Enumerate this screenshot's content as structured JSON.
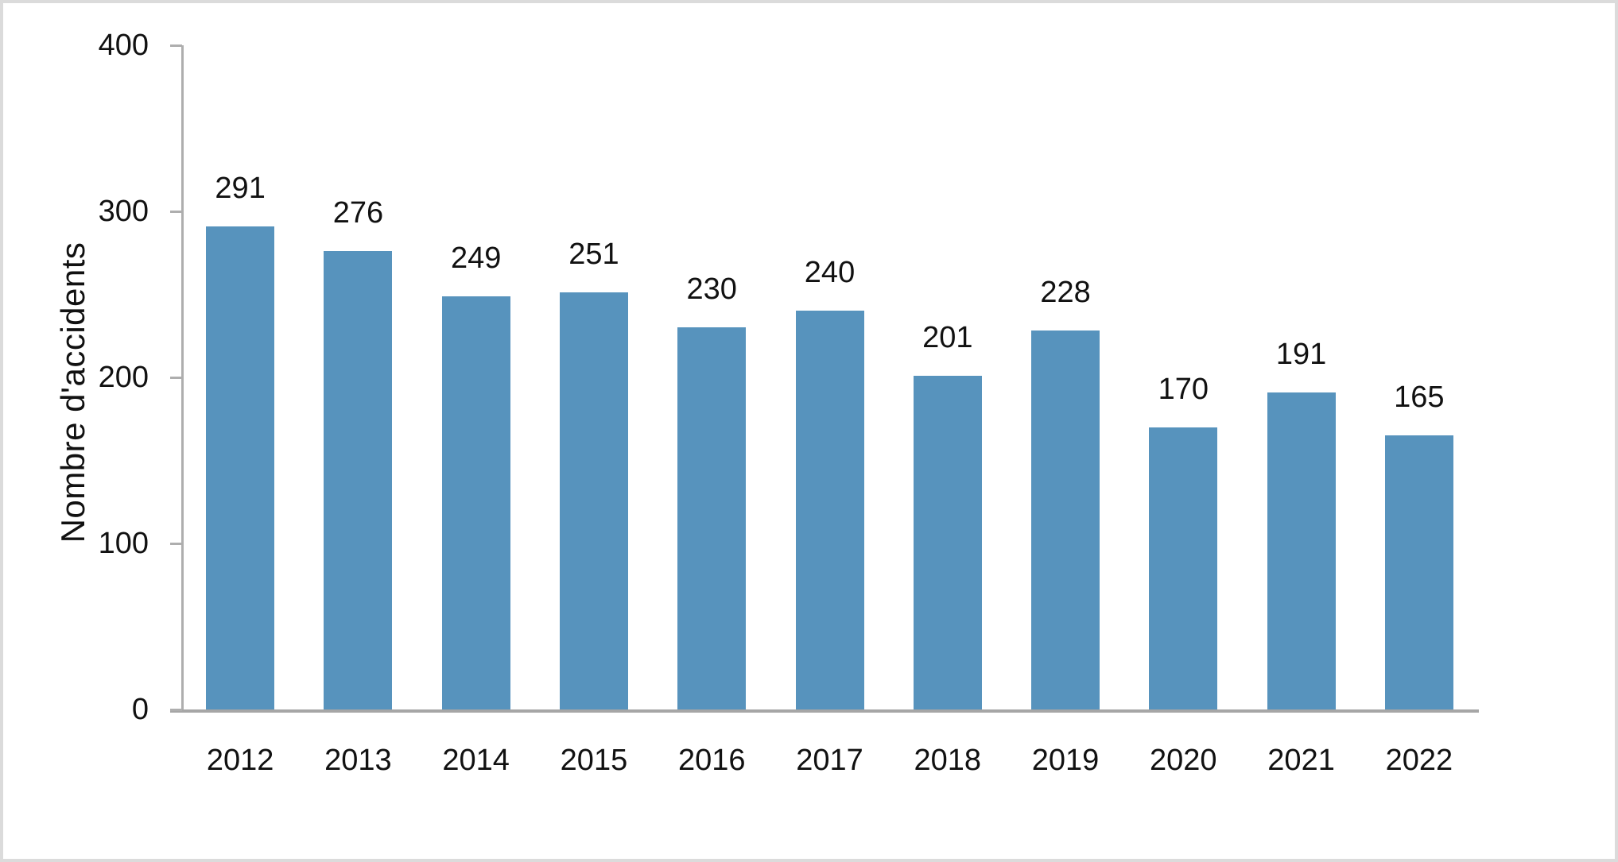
{
  "chart_data": {
    "type": "bar",
    "title": "",
    "categories": [
      "2012",
      "2013",
      "2014",
      "2015",
      "2016",
      "2017",
      "2018",
      "2019",
      "2020",
      "2021",
      "2022"
    ],
    "values": [
      291,
      276,
      249,
      251,
      230,
      240,
      201,
      228,
      170,
      191,
      165
    ],
    "xlabel": "",
    "ylabel": "Nombre d'accidents",
    "ylim": [
      0,
      400
    ],
    "yticks": [
      0,
      100,
      200,
      300,
      400
    ],
    "grid": false,
    "legend": false,
    "value_labels_shown": true,
    "bar_color": "#5793bd",
    "axis_color": "#a6a6a6",
    "text_color": "#111111",
    "frame_border_color": "#dbdbdb",
    "background_color": "#ffffff"
  }
}
